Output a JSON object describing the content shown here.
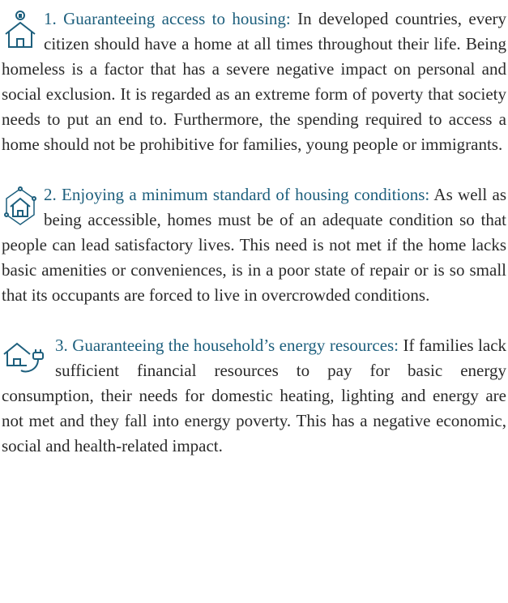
{
  "items": [
    {
      "heading": "1. Guaranteeing access to housing:",
      "body": "In developed countries, every citizen should have a home at all times throughout their life. Being homeless is a factor that has a severe negative impact on personal and social exclusion. It is regarded as an extreme form of poverty that society needs to put an end to. Furthermore, the spending required to access a home should not be prohibitive for families, young people or immigrants."
    },
    {
      "heading": "2. Enjoying a minimum standard of housing conditions:",
      "body": "As well as being accessible, homes must be of an adequate condition so that people can lead satisfactory lives. This need is not met if the home lacks basic amenities or conveniences, is in a poor state of repair or is so small that its occupants are forced to live in overcrowded conditions."
    },
    {
      "heading": "3. Guaranteeing the household’s energy resources:",
      "body": "If families lack sufficient financial resources to pay for basic energy consumption, their needs for domestic heating, lighting and energy are not met and they fall into energy poverty. This has a negative economic, social and health-related impact."
    }
  ]
}
